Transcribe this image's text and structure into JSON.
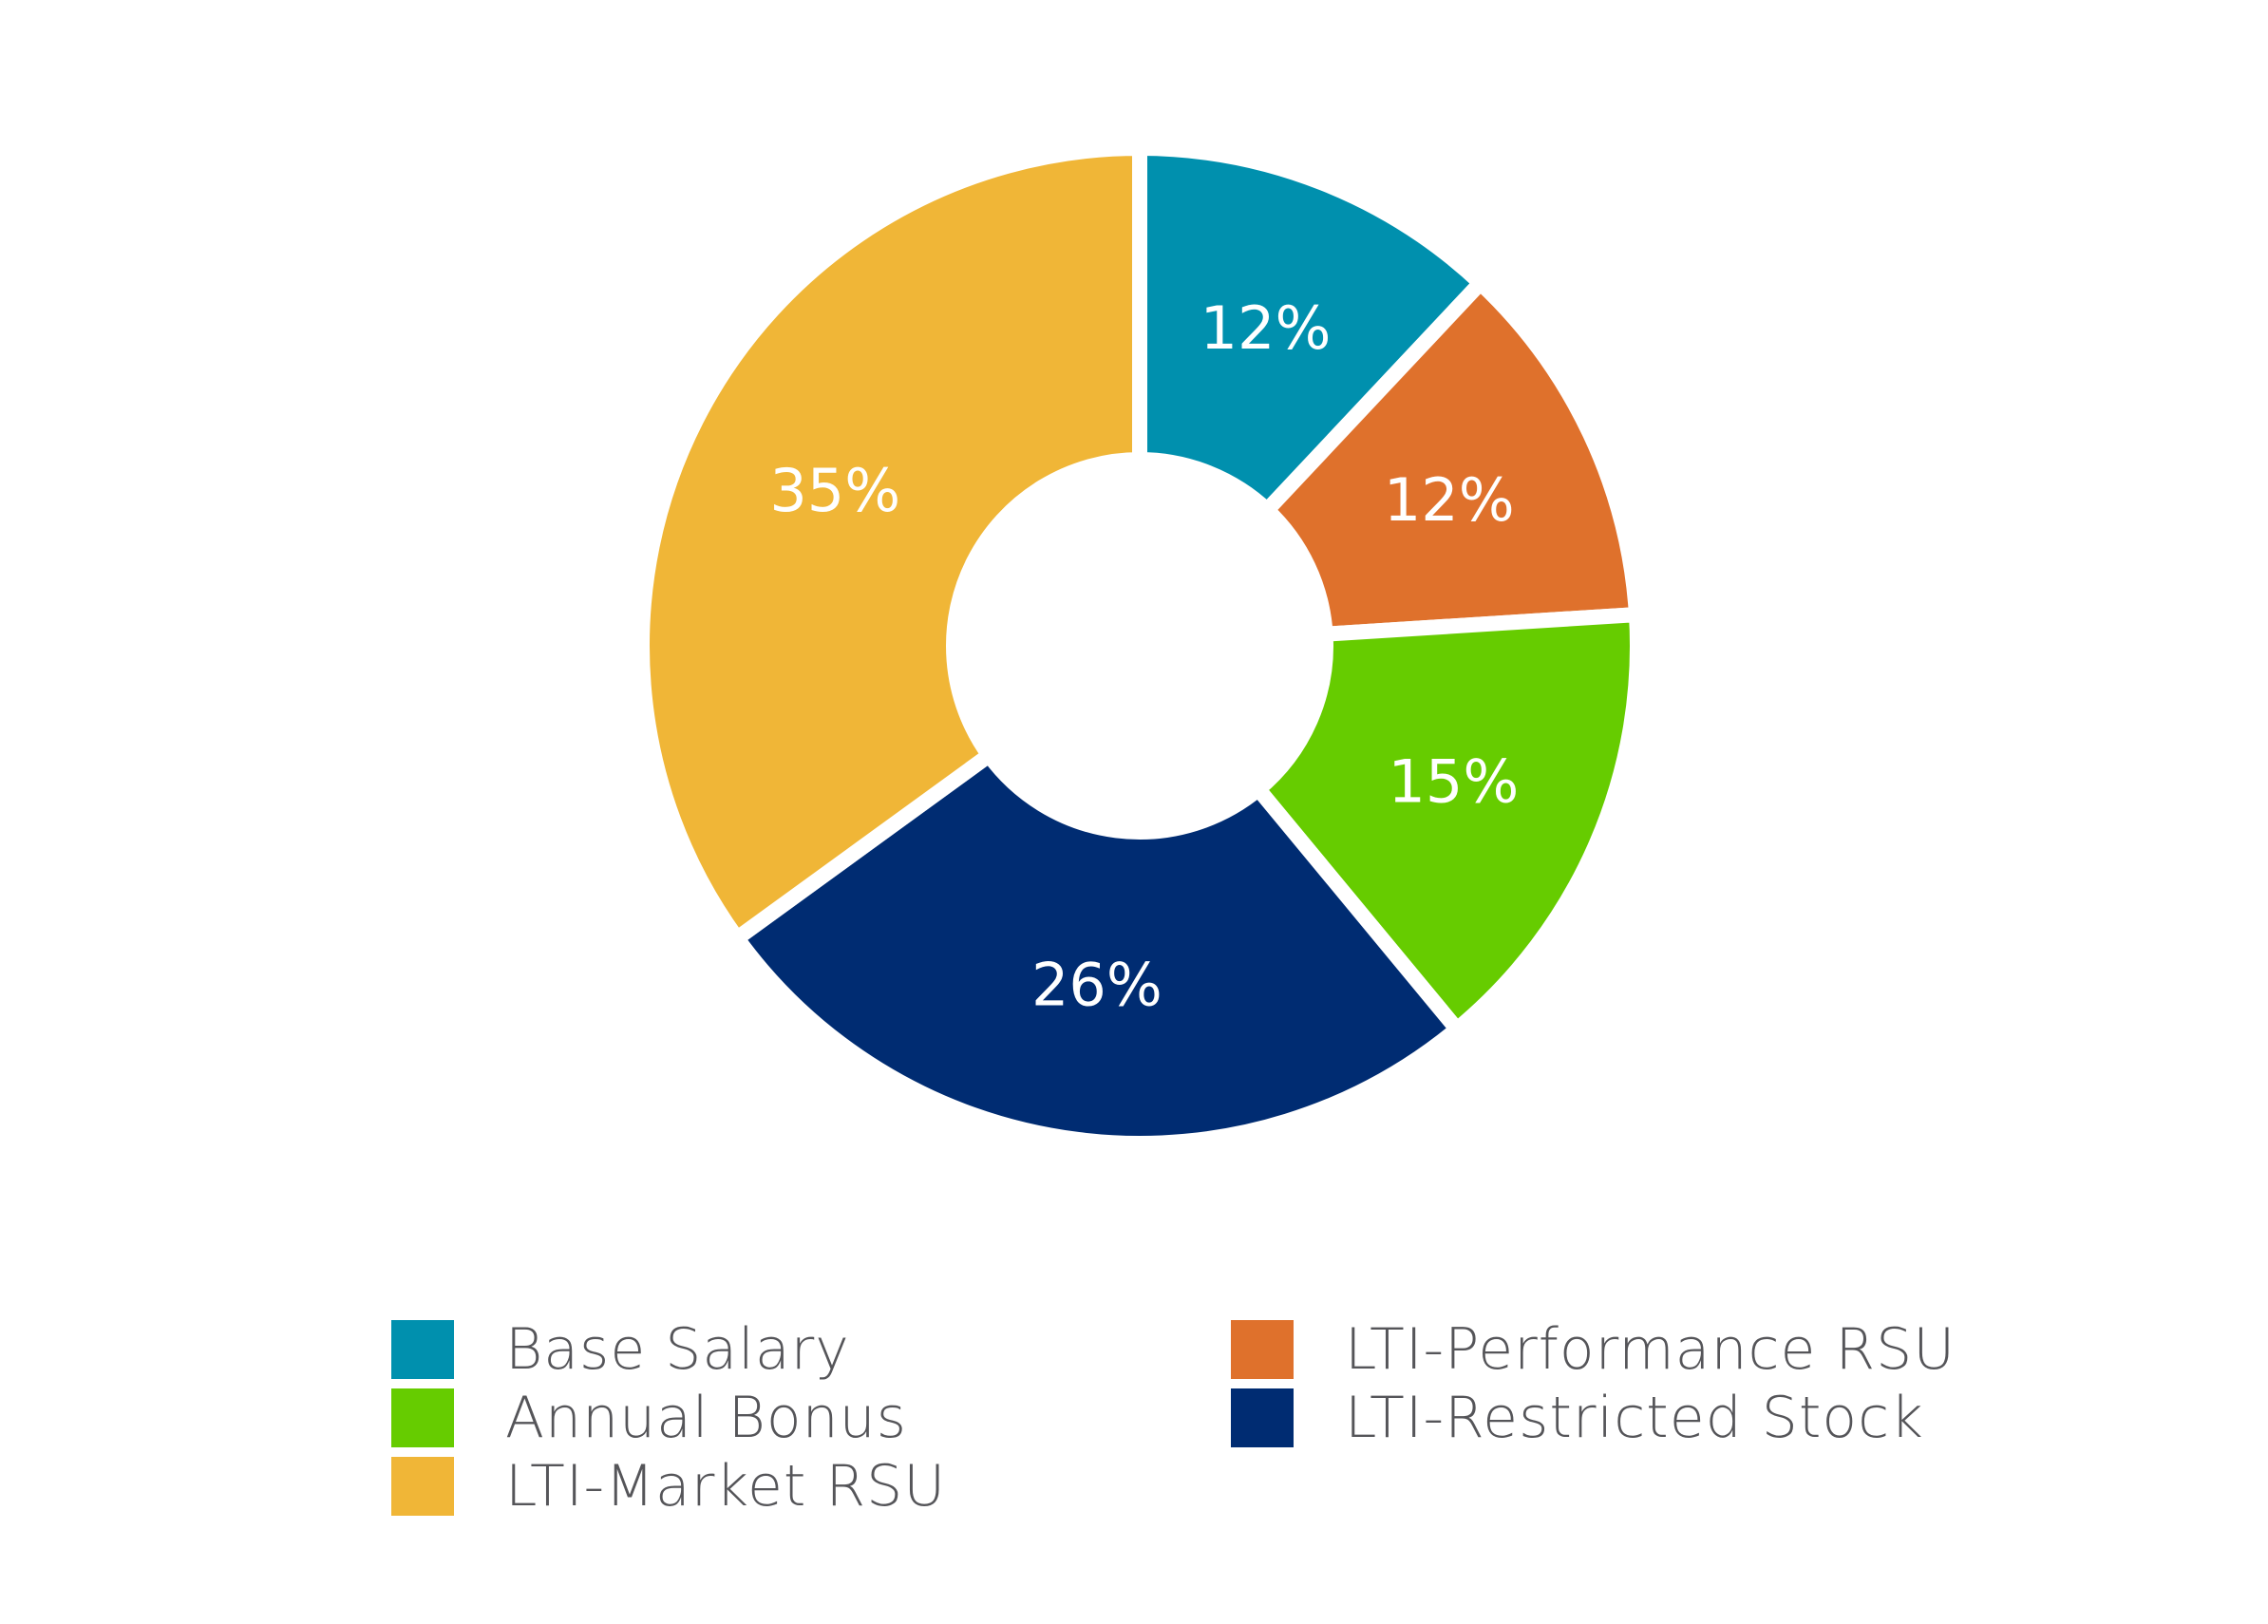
{
  "chart_data": {
    "type": "pie",
    "variant": "donut",
    "categories": [
      "Base Salary",
      "LTI-Performance RSU",
      "Annual Bonus",
      "LTI-Restricted Stock",
      "LTI-Market RSU"
    ],
    "values": [
      12,
      12,
      15,
      26,
      35
    ],
    "labels": [
      "12%",
      "12%",
      "15%",
      "26%",
      "35%"
    ],
    "colors": [
      "#0090AE",
      "#DF712C",
      "#66CC00",
      "#002C72",
      "#F0B637"
    ],
    "title": "",
    "legend_position": "bottom"
  },
  "legend": {
    "items": [
      {
        "label": "Base Salary",
        "color": "#0090AE"
      },
      {
        "label": "LTI-Performance RSU",
        "color": "#DF712C"
      },
      {
        "label": "Annual Bonus",
        "color": "#66CC00"
      },
      {
        "label": "LTI-Restricted Stock",
        "color": "#002C72"
      },
      {
        "label": "LTI-Market RSU",
        "color": "#F0B637"
      }
    ]
  }
}
